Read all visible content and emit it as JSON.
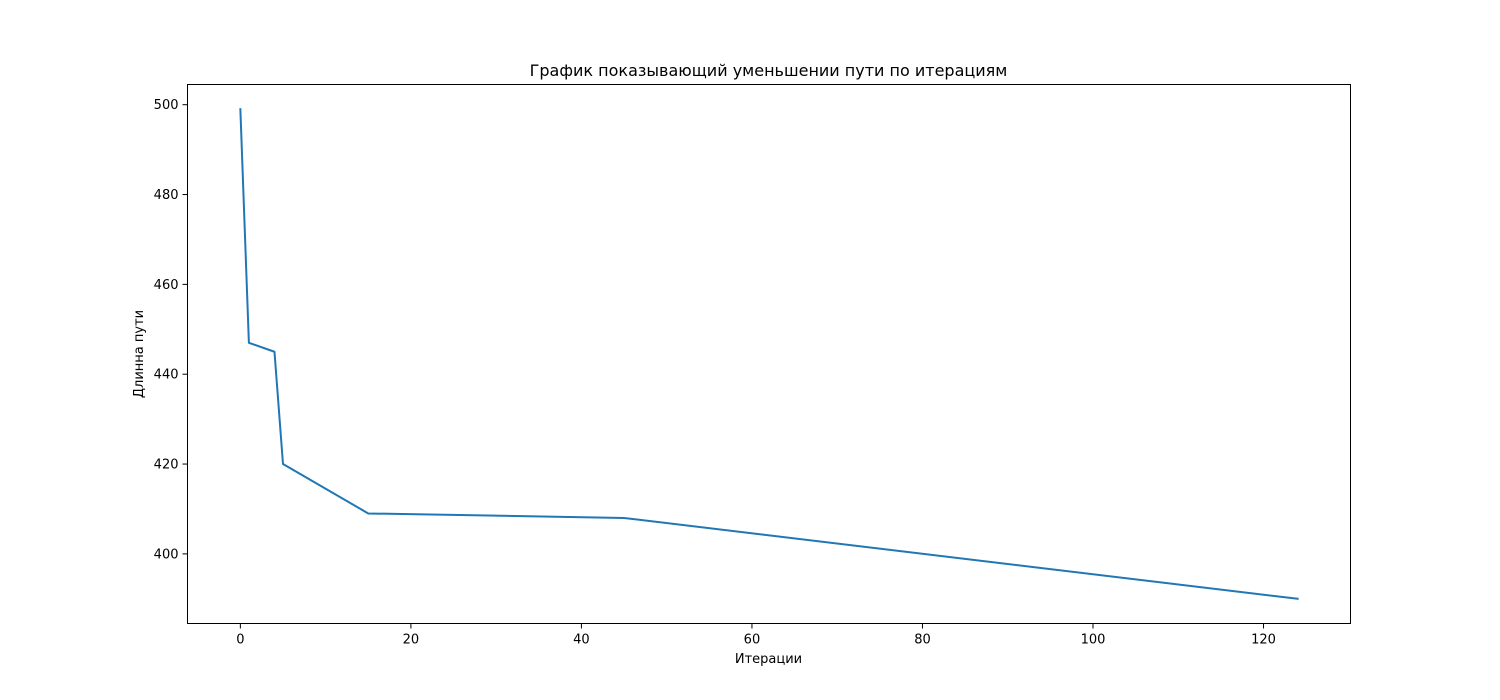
{
  "chart_data": {
    "type": "line",
    "title": "График показывающий уменьшении пути по итерациям",
    "xlabel": "Итерации",
    "ylabel": "Длинна пути",
    "xlim": [
      -6.2,
      130.2
    ],
    "ylim": [
      384.5,
      504.5
    ],
    "xticks": [
      0,
      20,
      40,
      60,
      80,
      100,
      120
    ],
    "yticks": [
      400,
      420,
      440,
      460,
      480,
      500
    ],
    "grid": false,
    "series": [
      {
        "color": "#1f77b4",
        "x": [
          0,
          1,
          4,
          5,
          15,
          45,
          124
        ],
        "y": [
          499,
          447,
          445,
          420,
          409,
          408,
          390
        ]
      }
    ]
  }
}
